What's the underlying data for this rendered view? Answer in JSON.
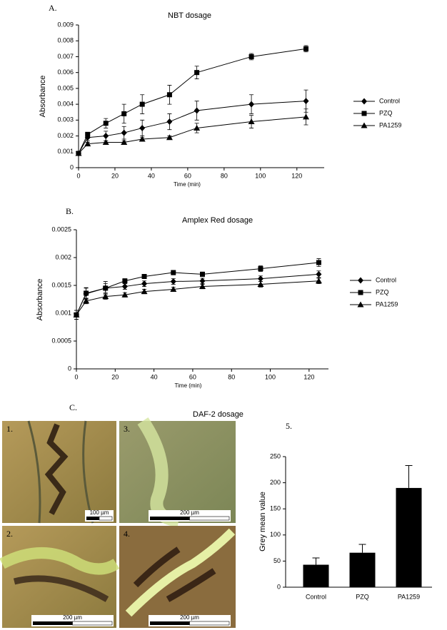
{
  "chart_data": [
    {
      "type": "line",
      "panel": "A.",
      "title": "NBT dosage",
      "x_label": "Time (min)",
      "y_label": "Absorbance",
      "x": [
        0,
        5,
        15,
        25,
        35,
        50,
        65,
        95,
        125
      ],
      "series": [
        {
          "name": "Control",
          "color": "#000000",
          "marker": "diamond",
          "values": [
            0.0009,
            0.0019,
            0.002,
            0.0022,
            0.0025,
            0.0029,
            0.0036,
            0.004,
            0.0042
          ],
          "errors": [
            0.0001,
            0.0002,
            0.0003,
            0.0004,
            0.0005,
            0.0005,
            0.0006,
            0.0006,
            0.0007
          ]
        },
        {
          "name": "PZQ",
          "color": "#000000",
          "marker": "square",
          "values": [
            0.0009,
            0.0021,
            0.0028,
            0.0034,
            0.004,
            0.0046,
            0.006,
            0.007,
            0.0075
          ],
          "errors": [
            0.0001,
            0.0001,
            0.0003,
            0.0006,
            0.0006,
            0.0006,
            0.0004,
            0.0002,
            0.0002
          ]
        },
        {
          "name": "PA1259",
          "color": "#000000",
          "marker": "triangle",
          "values": [
            0.0009,
            0.0015,
            0.0016,
            0.0016,
            0.0018,
            0.0019,
            0.0025,
            0.0029,
            0.0032
          ],
          "errors": [
            0.0001,
            0.0001,
            0.0001,
            0.0001,
            0.0001,
            0.0001,
            0.0003,
            0.0004,
            0.0005
          ]
        }
      ],
      "xlim": [
        0,
        135
      ],
      "xticks": [
        0,
        20,
        40,
        60,
        80,
        100,
        120
      ],
      "ylim": [
        0,
        0.009
      ],
      "yticks": [
        0,
        0.001,
        0.002,
        0.003,
        0.004,
        0.005,
        0.006,
        0.007,
        0.008,
        0.009
      ],
      "legend": "right"
    },
    {
      "type": "line",
      "panel": "B.",
      "title": "Amplex Red dosage",
      "x_label": "Time (min)",
      "y_label": "Absorbance",
      "x": [
        0,
        5,
        15,
        25,
        35,
        50,
        65,
        95,
        125
      ],
      "series": [
        {
          "name": "Control",
          "color": "#000000",
          "marker": "diamond",
          "values": [
            0.00097,
            0.00135,
            0.00145,
            0.00148,
            0.00153,
            0.00157,
            0.00158,
            0.00162,
            0.0017
          ],
          "errors": [
            8e-05,
            0.0001,
            8e-05,
            5e-05,
            5e-05,
            5e-05,
            5e-05,
            5e-05,
            6e-05
          ]
        },
        {
          "name": "PZQ",
          "color": "#000000",
          "marker": "square",
          "values": [
            0.00097,
            0.00136,
            0.00145,
            0.00158,
            0.00166,
            0.00173,
            0.0017,
            0.0018,
            0.00191
          ],
          "errors": [
            8e-05,
            0.0001,
            0.00012,
            4e-05,
            4e-05,
            4e-05,
            4e-05,
            5e-05,
            7e-05
          ]
        },
        {
          "name": "PA1259",
          "color": "#000000",
          "marker": "triangle",
          "values": [
            0.00097,
            0.00122,
            0.0013,
            0.00133,
            0.00139,
            0.00143,
            0.00148,
            0.00152,
            0.00158
          ],
          "errors": [
            8e-05,
            5e-05,
            5e-05,
            4e-05,
            4e-05,
            4e-05,
            4e-05,
            5e-05,
            5e-05
          ]
        }
      ],
      "xlim": [
        0,
        130
      ],
      "xticks": [
        0,
        20,
        40,
        60,
        80,
        100,
        120
      ],
      "ylim": [
        0,
        0.0025
      ],
      "yticks": [
        0,
        0.0005,
        0.001,
        0.0015,
        0.002,
        0.0025
      ],
      "legend": "right"
    },
    {
      "type": "bar",
      "panel": "5.",
      "y_label": "Grey mean value",
      "categories": [
        "Control",
        "PZQ",
        "PA1259"
      ],
      "values": [
        43,
        66,
        190
      ],
      "errors": [
        13,
        16,
        43
      ],
      "color": "#000000",
      "ylim": [
        0,
        250
      ],
      "yticks": [
        0,
        50,
        100,
        150,
        200,
        250
      ]
    }
  ],
  "figure": {
    "panel": "C.",
    "title": "DAF-2 dosage",
    "images": [
      {
        "label": "1.",
        "scale": "100 µm"
      },
      {
        "label": "2.",
        "scale": "200 µm"
      },
      {
        "label": "3.",
        "scale": "200 µm"
      },
      {
        "label": "4.",
        "scale": "200 µm"
      }
    ]
  }
}
